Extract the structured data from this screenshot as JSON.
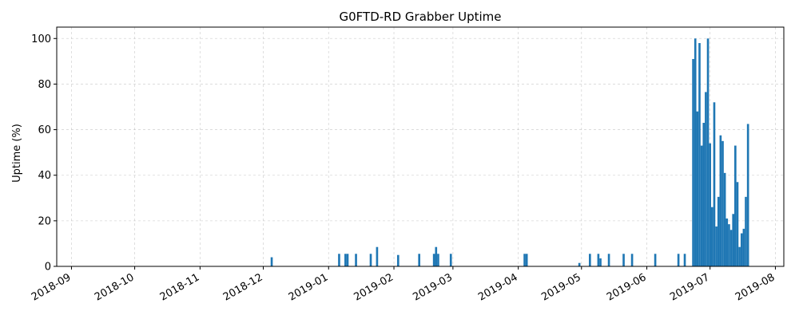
{
  "chart_data": {
    "type": "bar",
    "title": "G0FTD-RD Grabber Uptime",
    "xlabel": "",
    "ylabel": "Uptime (%)",
    "xlim": [
      "2018-08-25",
      "2019-08-05"
    ],
    "ylim": [
      0,
      105
    ],
    "x_ticks": [
      "2018-09",
      "2018-10",
      "2018-11",
      "2018-12",
      "2019-01",
      "2019-02",
      "2019-03",
      "2019-04",
      "2019-05",
      "2019-06",
      "2019-07",
      "2019-08"
    ],
    "x_tick_dates": [
      "2018-09-01",
      "2018-10-01",
      "2018-11-01",
      "2018-12-01",
      "2019-01-01",
      "2019-02-01",
      "2019-03-01",
      "2019-04-01",
      "2019-05-01",
      "2019-06-01",
      "2019-07-01",
      "2019-08-01"
    ],
    "y_ticks": [
      0,
      20,
      40,
      60,
      80,
      100
    ],
    "grid": true,
    "bar_color": "#1f77b4",
    "series": [
      {
        "dates": [
          "2018-12-05",
          "2019-01-06",
          "2019-01-09",
          "2019-01-10",
          "2019-01-14",
          "2019-01-21",
          "2019-01-24",
          "2019-02-03",
          "2019-02-13",
          "2019-02-20",
          "2019-02-21",
          "2019-02-22",
          "2019-02-28",
          "2019-04-04",
          "2019-04-05",
          "2019-04-30",
          "2019-05-05",
          "2019-05-09",
          "2019-05-10",
          "2019-05-14",
          "2019-05-21",
          "2019-05-25",
          "2019-06-05",
          "2019-06-16",
          "2019-06-19",
          "2019-06-23",
          "2019-06-24",
          "2019-06-25",
          "2019-06-26",
          "2019-06-27",
          "2019-06-28",
          "2019-06-29",
          "2019-06-30",
          "2019-07-01",
          "2019-07-02",
          "2019-07-03",
          "2019-07-04",
          "2019-07-05",
          "2019-07-06",
          "2019-07-07",
          "2019-07-08",
          "2019-07-09",
          "2019-07-10",
          "2019-07-11",
          "2019-07-12",
          "2019-07-13",
          "2019-07-14",
          "2019-07-15",
          "2019-07-16",
          "2019-07-17",
          "2019-07-18",
          "2019-07-19",
          "2019-07-20"
        ],
        "values": [
          4,
          5.5,
          5.5,
          5.5,
          5.5,
          5.5,
          8.5,
          5,
          5.5,
          5.5,
          8.5,
          5.5,
          5.5,
          5.5,
          5.5,
          1.5,
          5.5,
          5.5,
          3.5,
          5.5,
          5.5,
          5.5,
          5.5,
          5.5,
          5.5,
          91,
          100,
          68,
          98,
          53,
          63,
          76.5,
          100,
          54,
          26,
          72,
          17.5,
          30.5,
          57.5,
          55,
          41,
          21,
          18.5,
          16,
          23,
          53,
          37,
          8.5,
          14.5,
          16.5,
          30.5,
          62.5,
          0
        ]
      }
    ]
  }
}
